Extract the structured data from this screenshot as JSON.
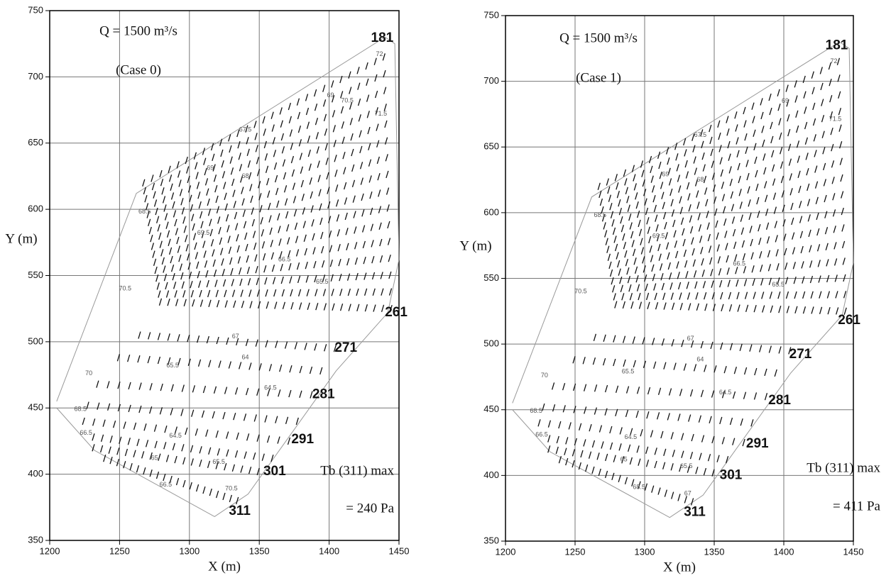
{
  "chart_data": [
    {
      "type": "quiver",
      "title": "Q = 1500 m³/s",
      "subtitle": "(Case 0)",
      "xlabel": "X (m)",
      "ylabel": "Y (m)",
      "xlim": [
        1200,
        1450
      ],
      "ylim": [
        350,
        750
      ],
      "xticks": [
        1200,
        1250,
        1300,
        1350,
        1400,
        1450
      ],
      "yticks": [
        350,
        400,
        450,
        500,
        550,
        600,
        650,
        700,
        750
      ],
      "grid": true,
      "max_shear": {
        "label": "Tb (311) max",
        "value": 240,
        "value_label": "= 240 Pa"
      },
      "sections": [
        {
          "label": "181",
          "x": 1438,
          "y": 729
        },
        {
          "label": "261",
          "x": 1448,
          "y": 522
        },
        {
          "label": "271",
          "x": 1412,
          "y": 495
        },
        {
          "label": "281",
          "x": 1396,
          "y": 460
        },
        {
          "label": "291",
          "x": 1381,
          "y": 426
        },
        {
          "label": "301",
          "x": 1361,
          "y": 402
        },
        {
          "label": "311",
          "x": 1336,
          "y": 372
        }
      ],
      "contour_labels": [
        {
          "value": 72,
          "x": 1436,
          "y": 717
        },
        {
          "value": 69,
          "x": 1401,
          "y": 686
        },
        {
          "value": 70.5,
          "x": 1413,
          "y": 682
        },
        {
          "value": 71.5,
          "x": 1437,
          "y": 672
        },
        {
          "value": 67.5,
          "x": 1340,
          "y": 660
        },
        {
          "value": 69,
          "x": 1315,
          "y": 631
        },
        {
          "value": 68,
          "x": 1340,
          "y": 625
        },
        {
          "value": 68.5,
          "x": 1268,
          "y": 598
        },
        {
          "value": 69.5,
          "x": 1310,
          "y": 582
        },
        {
          "value": 66.5,
          "x": 1368,
          "y": 562
        },
        {
          "value": 65.5,
          "x": 1395,
          "y": 545
        },
        {
          "value": 70.5,
          "x": 1254,
          "y": 540
        },
        {
          "value": 67,
          "x": 1333,
          "y": 504
        },
        {
          "value": 64,
          "x": 1340,
          "y": 488
        },
        {
          "value": 65.5,
          "x": 1288,
          "y": 482
        },
        {
          "value": 64.5,
          "x": 1358,
          "y": 465
        },
        {
          "value": 70,
          "x": 1228,
          "y": 476
        },
        {
          "value": 68.5,
          "x": 1222,
          "y": 449
        },
        {
          "value": 66.5,
          "x": 1226,
          "y": 431
        },
        {
          "value": 64.5,
          "x": 1290,
          "y": 429
        },
        {
          "value": 65,
          "x": 1275,
          "y": 412
        },
        {
          "value": 65.5,
          "x": 1321,
          "y": 409
        },
        {
          "value": 66.5,
          "x": 1283,
          "y": 392
        },
        {
          "value": 70.5,
          "x": 1330,
          "y": 389
        }
      ]
    },
    {
      "type": "quiver",
      "title": "Q = 1500 m³/s",
      "subtitle": "(Case 1)",
      "xlabel": "X (m)",
      "ylabel": "Y (m)",
      "xlim": [
        1200,
        1450
      ],
      "ylim": [
        350,
        750
      ],
      "xticks": [
        1200,
        1250,
        1300,
        1350,
        1400,
        1450
      ],
      "yticks": [
        350,
        400,
        450,
        500,
        550,
        600,
        650,
        700,
        750
      ],
      "grid": true,
      "max_shear": {
        "label": "Tb (311) max",
        "value": 411,
        "value_label": "= 411 Pa"
      },
      "sections": [
        {
          "label": "181",
          "x": 1438,
          "y": 727
        },
        {
          "label": "261",
          "x": 1447,
          "y": 518
        },
        {
          "label": "271",
          "x": 1412,
          "y": 492
        },
        {
          "label": "281",
          "x": 1397,
          "y": 457
        },
        {
          "label": "291",
          "x": 1381,
          "y": 424
        },
        {
          "label": "301",
          "x": 1362,
          "y": 400
        },
        {
          "label": "311",
          "x": 1336,
          "y": 372
        }
      ],
      "contour_labels": [
        {
          "value": 72,
          "x": 1436,
          "y": 715
        },
        {
          "value": 69,
          "x": 1401,
          "y": 685
        },
        {
          "value": 71.5,
          "x": 1437,
          "y": 671
        },
        {
          "value": 67.5,
          "x": 1340,
          "y": 659
        },
        {
          "value": 69,
          "x": 1315,
          "y": 629
        },
        {
          "value": 68,
          "x": 1340,
          "y": 625
        },
        {
          "value": 68.5,
          "x": 1268,
          "y": 598
        },
        {
          "value": 69.5,
          "x": 1310,
          "y": 582
        },
        {
          "value": 66.5,
          "x": 1368,
          "y": 561
        },
        {
          "value": 65.5,
          "x": 1396,
          "y": 545
        },
        {
          "value": 70.5,
          "x": 1254,
          "y": 540
        },
        {
          "value": 67,
          "x": 1333,
          "y": 504
        },
        {
          "value": 64,
          "x": 1340,
          "y": 488
        },
        {
          "value": 65.5,
          "x": 1288,
          "y": 479
        },
        {
          "value": 64.5,
          "x": 1358,
          "y": 463
        },
        {
          "value": 70,
          "x": 1228,
          "y": 476
        },
        {
          "value": 68.5,
          "x": 1222,
          "y": 449
        },
        {
          "value": 66.5,
          "x": 1226,
          "y": 431
        },
        {
          "value": 64.5,
          "x": 1290,
          "y": 429
        },
        {
          "value": 65,
          "x": 1285,
          "y": 412
        },
        {
          "value": 65.5,
          "x": 1330,
          "y": 407
        },
        {
          "value": 68.5,
          "x": 1296,
          "y": 391
        },
        {
          "value": 67,
          "x": 1331,
          "y": 386
        }
      ]
    }
  ]
}
